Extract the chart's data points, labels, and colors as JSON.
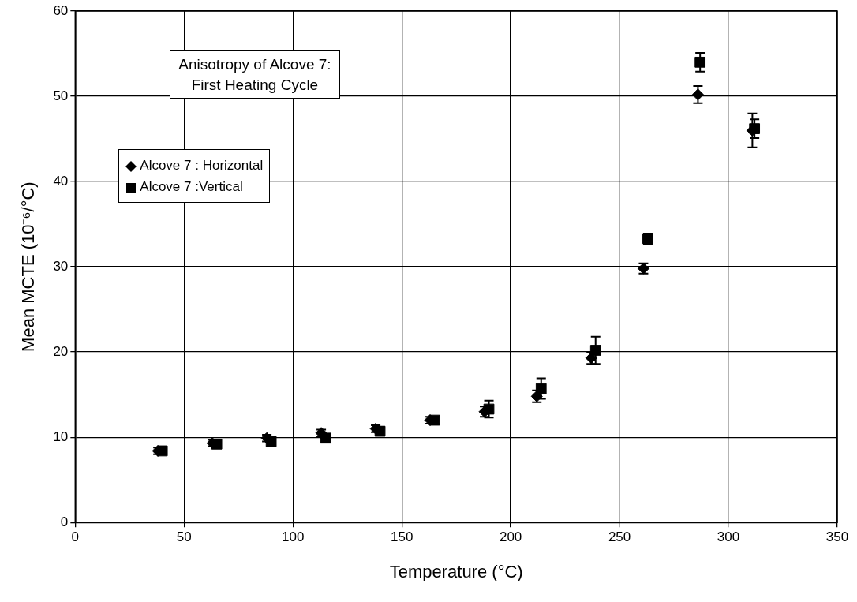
{
  "chart_data": {
    "type": "scatter",
    "title": "Anisotropy of Alcove 7:\nFirst Heating Cycle",
    "xlabel": "Temperature (°C)",
    "ylabel": "Mean MCTE (10⁻⁶/°C)",
    "xlim": [
      0,
      350
    ],
    "xticks": [
      0,
      50,
      100,
      150,
      200,
      250,
      300,
      350
    ],
    "ylim": [
      0,
      60
    ],
    "yticks": [
      0,
      10,
      20,
      30,
      40,
      50,
      60
    ],
    "grid": true,
    "legend": "top left",
    "series": [
      {
        "name": "Alcove 7 : Horizontal",
        "color": "#000000",
        "marker": "diamond",
        "x": [
          38,
          63,
          88,
          113,
          138,
          163,
          188,
          212,
          237,
          261,
          286,
          311
        ],
        "values": [
          8.4,
          9.3,
          9.9,
          10.5,
          11.0,
          12.0,
          13.0,
          14.8,
          19.3,
          29.8,
          50.2,
          46.0
        ],
        "errors": [
          0.4,
          0.4,
          0.4,
          0.4,
          0.4,
          0.4,
          0.6,
          0.7,
          0.7,
          0.6,
          1.0,
          2.0
        ]
      },
      {
        "name": "Alcove 7 :Vertical",
        "color": "#000000",
        "marker": "square",
        "x": [
          40,
          65,
          90,
          115,
          140,
          165,
          190,
          214,
          239,
          263,
          287,
          312
        ],
        "values": [
          8.4,
          9.2,
          9.5,
          9.9,
          10.7,
          12.0,
          13.3,
          15.7,
          20.2,
          33.3,
          54.0,
          46.2
        ],
        "errors": [
          0.4,
          0.4,
          0.5,
          0.4,
          0.5,
          0.4,
          1.0,
          1.2,
          1.6,
          0.6,
          1.1,
          1.1
        ]
      }
    ]
  }
}
